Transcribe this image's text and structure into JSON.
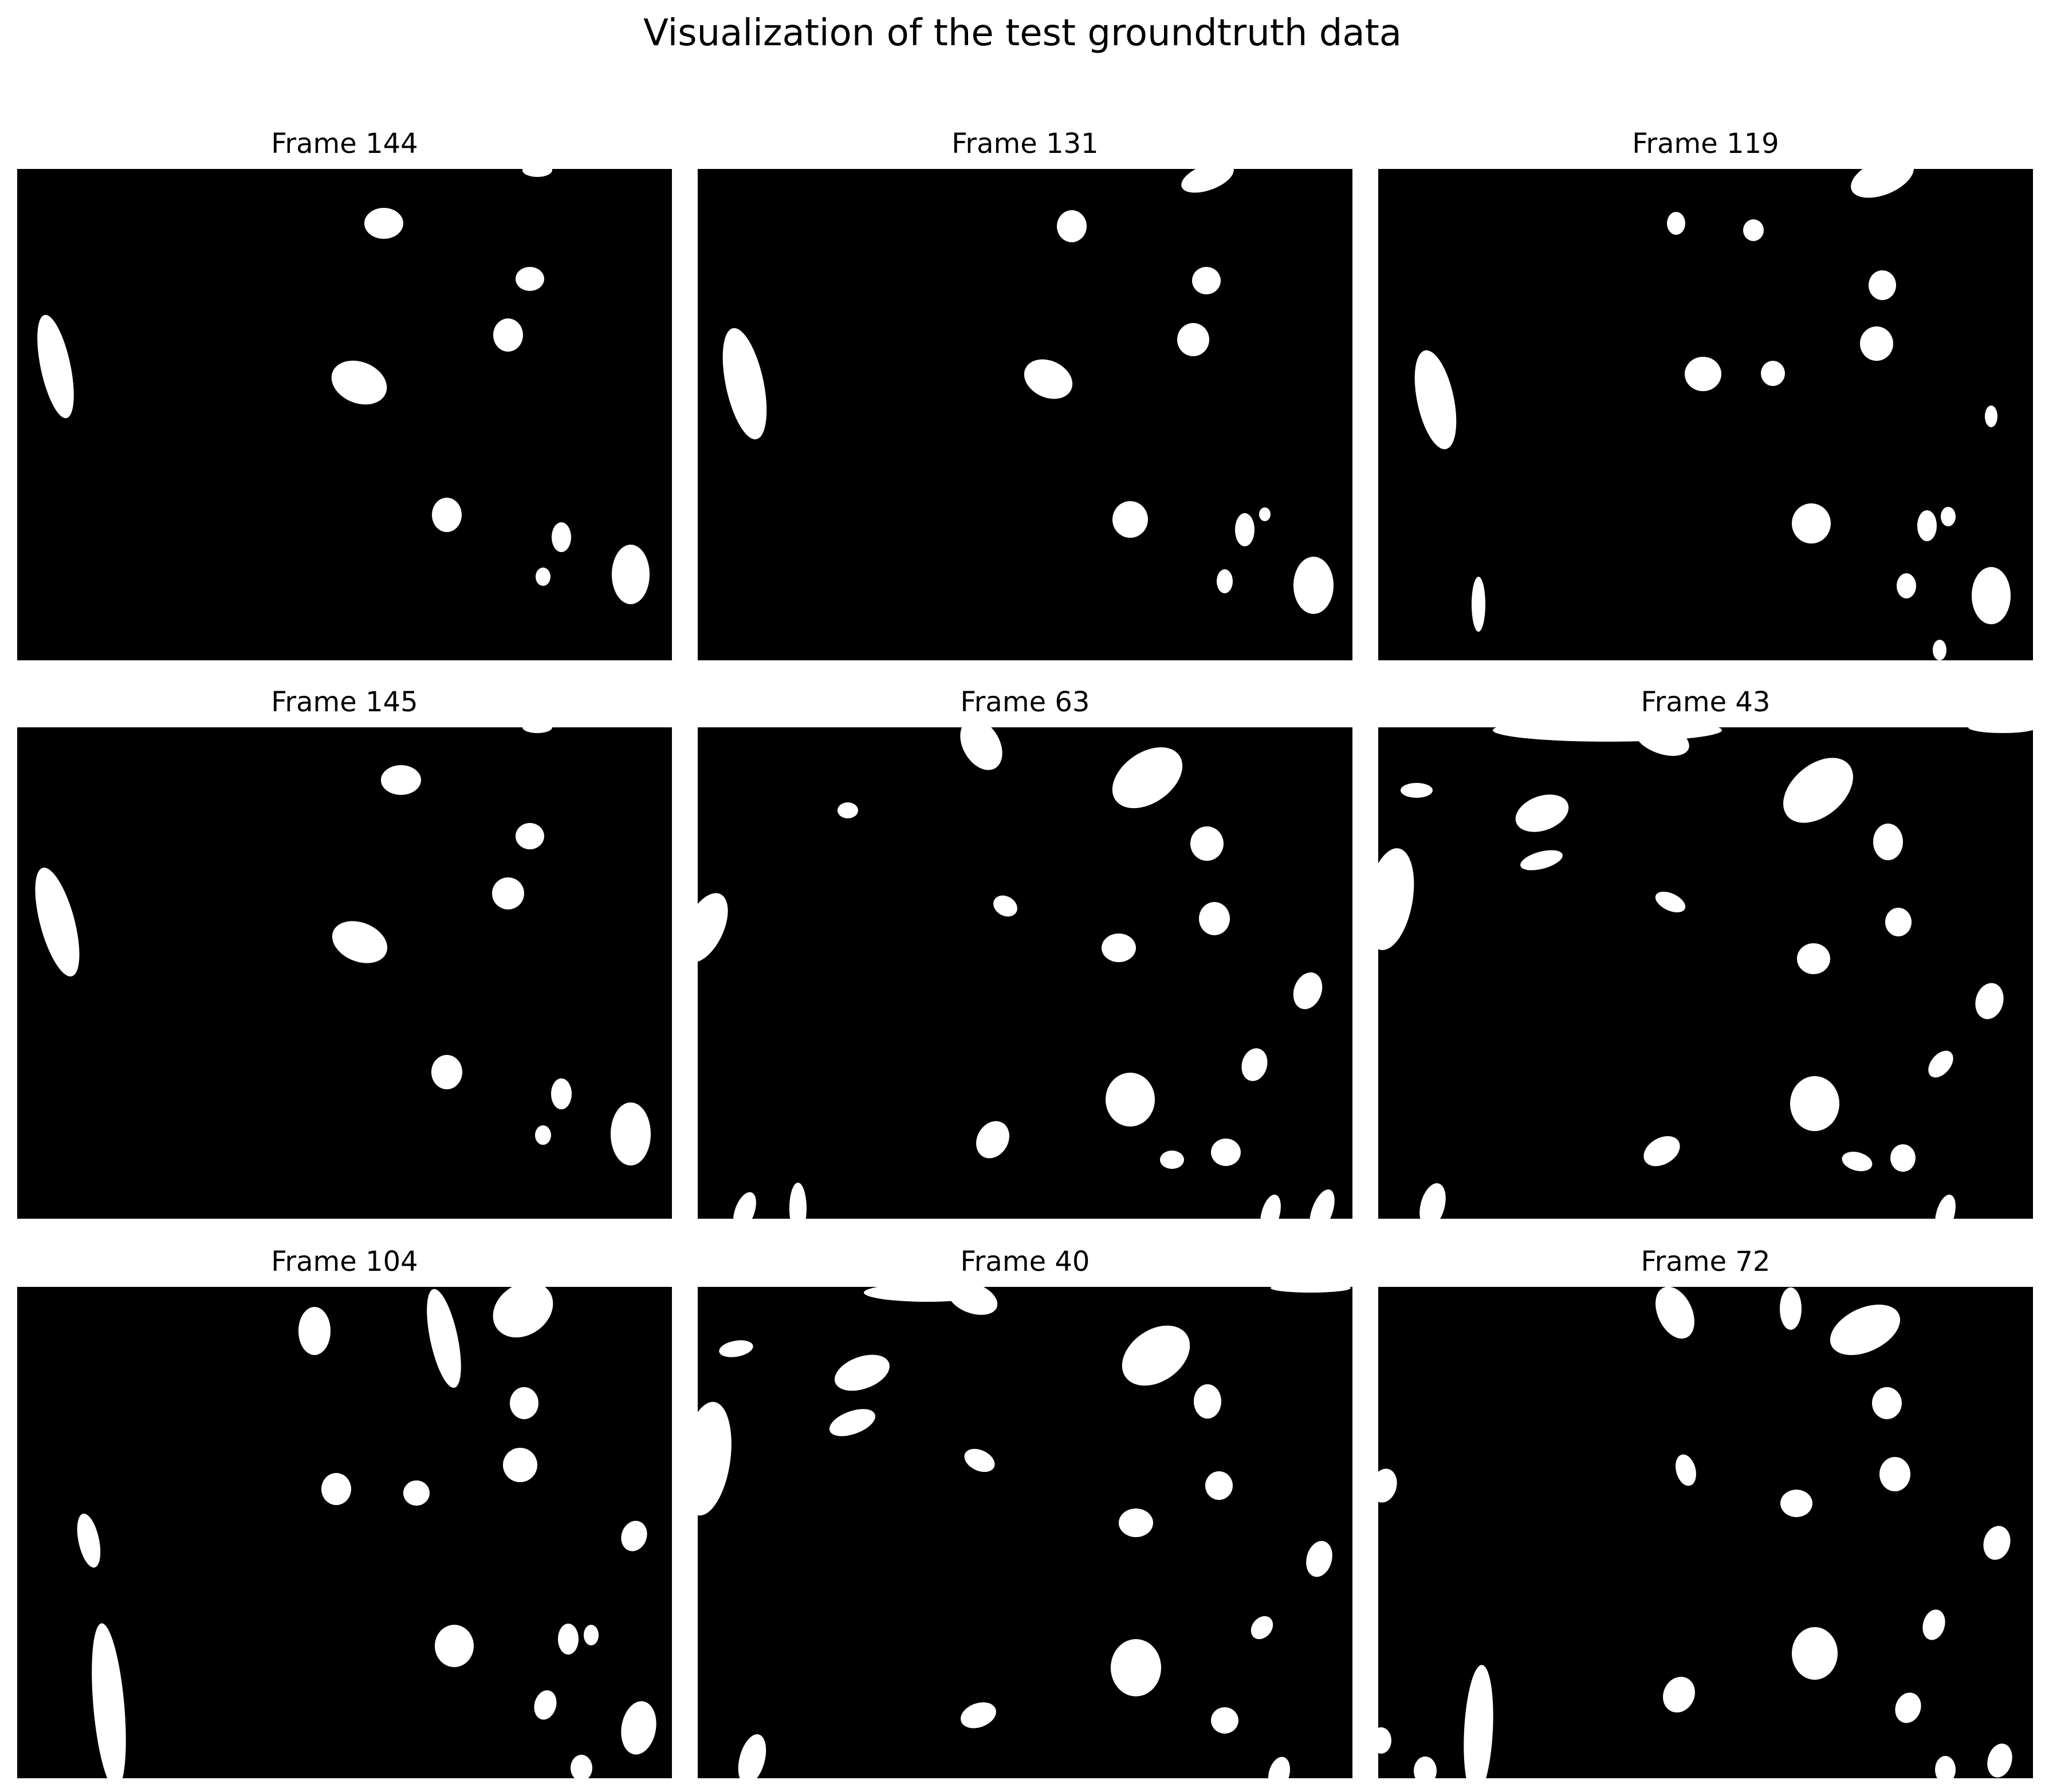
{
  "figure": {
    "title": "Visualization of the test groundtruth data",
    "colors": {
      "foreground": "#ffffff",
      "background": "#000000"
    },
    "panels": [
      {
        "title": "Frame 144"
      },
      {
        "title": "Frame 131"
      },
      {
        "title": "Frame 119"
      },
      {
        "title": "Frame 145"
      },
      {
        "title": "Frame 63"
      },
      {
        "title": "Frame 43"
      },
      {
        "title": "Frame 104"
      },
      {
        "title": "Frame 40"
      },
      {
        "title": "Frame 72"
      }
    ]
  }
}
